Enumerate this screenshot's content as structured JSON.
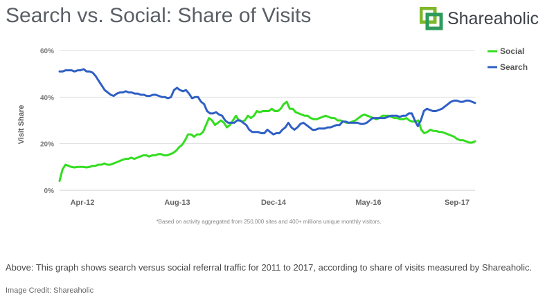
{
  "header": {
    "title": "Search vs. Social: Share of Visits",
    "brand": "Shareaholic"
  },
  "caption": "Above: This graph shows search versus social referral traffic for 2011 to 2017, according to share of visits measured by Shareaholic.",
  "credit": "Image Credit: Shareaholic",
  "chart_data": {
    "type": "line",
    "title": "Search vs. Social: Share of Visits",
    "ylabel": "Visit Share",
    "xlabel": "",
    "ylim": [
      0,
      60
    ],
    "y_ticks": [
      "0%",
      "20%",
      "40%",
      "60%"
    ],
    "x_ticks": [
      "Apr-12",
      "Aug-13",
      "Dec-14",
      "May-16",
      "Sep-17"
    ],
    "legend_position": "top-right",
    "footnote": "*Based on activity aggregated from 250,000 sites and 400+ millions unique monthly visitors.",
    "colors": {
      "Social": "#33dd1f",
      "Search": "#2f5fc4",
      "grid": "#dddddd"
    },
    "series": [
      {
        "name": "Social",
        "values": [
          4,
          9,
          11,
          10.5,
          10,
          9.8,
          10,
          10,
          10,
          9.8,
          10,
          10.5,
          10.5,
          11,
          11,
          11.5,
          11,
          11,
          11.5,
          12,
          12.5,
          13,
          13.5,
          13.5,
          14,
          13.5,
          14,
          14.5,
          15,
          15,
          14.5,
          15,
          15,
          15.5,
          15.5,
          15,
          15,
          15.5,
          16,
          17,
          18.5,
          19.5,
          21.5,
          24,
          24,
          23,
          24,
          24,
          25,
          28,
          31,
          30,
          28,
          29,
          30,
          29,
          27,
          28,
          30,
          32,
          30,
          29.5,
          30,
          32,
          31,
          32,
          34,
          33.5,
          34,
          34,
          34,
          35,
          34,
          34,
          35,
          37,
          38,
          35,
          35,
          33.5,
          33,
          32.5,
          32,
          32,
          31,
          30.5,
          30.5,
          31,
          31.5,
          32,
          31.5,
          31,
          31,
          30,
          30,
          29.5,
          29,
          29,
          29.5,
          30,
          31,
          32,
          32.5,
          32,
          31.5,
          31,
          30.5,
          31,
          32,
          32,
          32,
          31.5,
          31,
          31,
          30.5,
          30.5,
          31,
          30,
          29.5,
          29.5,
          30,
          26,
          24.5,
          25,
          26,
          25.5,
          25.5,
          25,
          25,
          24.5,
          24,
          23.5,
          23,
          22,
          21.5,
          21.5,
          21,
          20.5,
          20.5,
          21
        ]
      },
      {
        "name": "Search",
        "values": [
          51,
          51,
          51.5,
          51.5,
          51.5,
          51,
          51.5,
          51.5,
          52,
          51,
          51,
          50.5,
          49,
          47,
          45,
          43,
          42,
          41,
          40.5,
          41.5,
          42,
          42,
          42.5,
          42,
          42,
          41.5,
          41.5,
          41,
          41,
          40.5,
          40.5,
          41,
          41,
          40.5,
          40,
          40,
          39.5,
          40,
          43,
          44,
          43,
          42.5,
          43,
          41.5,
          39.5,
          40,
          40,
          38,
          37,
          34,
          33,
          33,
          33.5,
          32.5,
          32,
          30,
          29,
          29,
          29,
          30,
          30,
          29,
          28,
          26,
          25,
          25,
          25,
          24.5,
          24.5,
          26,
          25,
          24,
          24.5,
          24.5,
          26,
          27,
          29,
          27,
          26,
          27,
          28.5,
          29,
          28,
          27,
          26,
          26,
          26.5,
          26.5,
          26.5,
          27,
          27,
          27.5,
          28,
          28,
          29.5,
          29.5,
          29,
          29,
          29,
          29,
          28.5,
          28.5,
          29,
          30,
          31,
          31,
          31,
          31,
          31,
          31.5,
          32,
          32,
          32,
          31.5,
          32,
          32,
          33,
          33,
          30,
          27.5,
          30,
          34,
          35,
          34.5,
          34,
          34,
          34.5,
          35,
          36,
          37,
          38,
          38.5,
          38.5,
          38,
          38,
          38.5,
          38.5,
          38,
          37.5
        ]
      }
    ]
  }
}
